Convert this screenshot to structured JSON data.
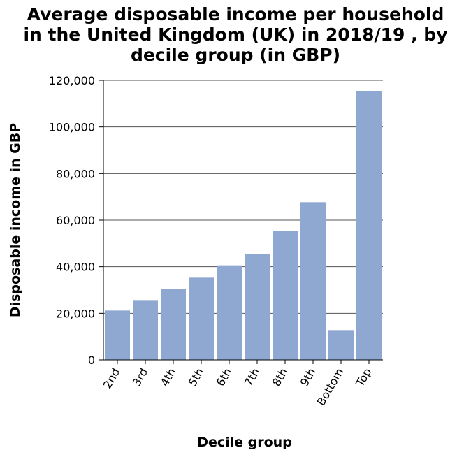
{
  "chart_data": {
    "type": "bar",
    "title": "Average disposable income per household\nin the United Kingdom (UK) in 2018/19 , by\ndecile group (in GBP)",
    "xlabel": "Decile group",
    "ylabel": "Disposable income in GBP",
    "categories": [
      "2nd",
      "3rd",
      "4th",
      "5th",
      "6th",
      "7th",
      "8th",
      "9th",
      "Bottom",
      "Top"
    ],
    "values": [
      21200,
      25400,
      30600,
      35300,
      40600,
      45400,
      55300,
      67700,
      12800,
      115500
    ],
    "ylim": [
      0,
      120000
    ],
    "yticks": [
      0,
      20000,
      40000,
      60000,
      80000,
      100000,
      120000
    ],
    "ytick_labels": [
      "0",
      "20,000",
      "40,000",
      "60,000",
      "80,000",
      "100,000",
      "120,000"
    ],
    "grid": true,
    "bar_color": "#8fa8d1"
  }
}
